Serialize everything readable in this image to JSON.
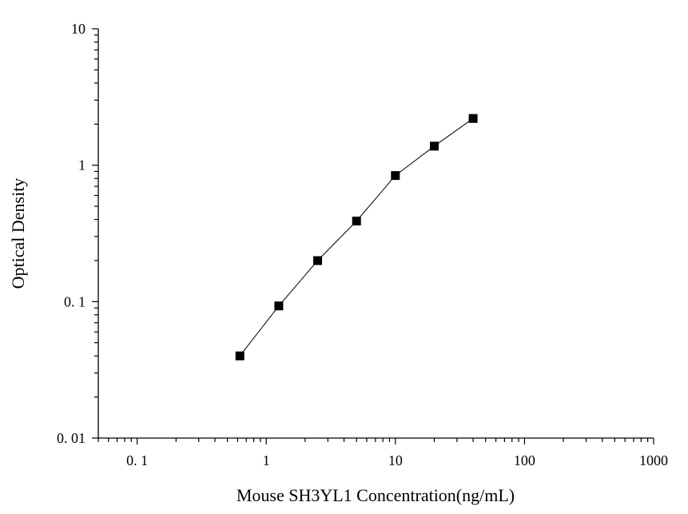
{
  "chart_data": {
    "type": "scatter",
    "xlabel": "Mouse SH3YL1 Concentration(ng/mL)",
    "ylabel": "Optical Density",
    "x_scale": "log",
    "y_scale": "log",
    "xlim": [
      0.05,
      1000
    ],
    "ylim": [
      0.01,
      10
    ],
    "x_ticks": [
      {
        "value": 0.1,
        "label": "0. 1"
      },
      {
        "value": 1,
        "label": "1"
      },
      {
        "value": 10,
        "label": "10"
      },
      {
        "value": 100,
        "label": "100"
      },
      {
        "value": 1000,
        "label": "1000"
      }
    ],
    "y_ticks": [
      {
        "value": 0.01,
        "label": "0. 01"
      },
      {
        "value": 0.1,
        "label": "0. 1"
      },
      {
        "value": 1,
        "label": "1"
      },
      {
        "value": 10,
        "label": "10"
      }
    ],
    "grid": false,
    "series": [
      {
        "x": [
          0.625,
          1.25,
          2.5,
          5,
          10,
          20,
          40
        ],
        "y": [
          0.04,
          0.093,
          0.2,
          0.39,
          0.84,
          1.38,
          2.2
        ]
      }
    ]
  }
}
